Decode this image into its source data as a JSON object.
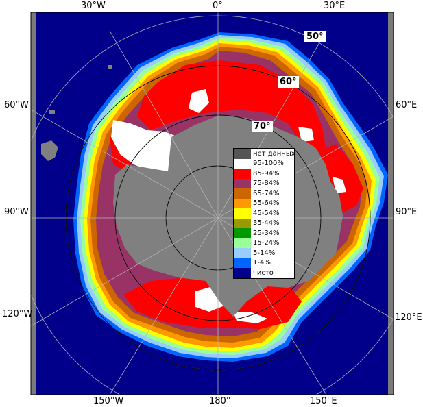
{
  "map": {
    "longitude_labels": {
      "top": [
        "30°W",
        "0°",
        "30°E"
      ],
      "left": [
        "60°W",
        "90°W",
        "120°W"
      ],
      "right": [
        "60°E",
        "90°E",
        "120°E"
      ],
      "bottom": [
        "150°W",
        "180°",
        "150°E"
      ]
    },
    "latitude_labels": [
      "50°",
      "60°",
      "70°"
    ],
    "colors": {
      "open_water": "#00008b",
      "land": "#808080",
      "frame_gray": "#7a7a7a",
      "grid": "#b4b4b4"
    }
  },
  "legend": {
    "items": [
      {
        "label": "нет данных",
        "color": "#555555"
      },
      {
        "label": "95-100%",
        "color": "#ffffff"
      },
      {
        "label": "85-94%",
        "color": "#ff0000"
      },
      {
        "label": "75-84%",
        "color": "#993366"
      },
      {
        "label": "65-74%",
        "color": "#cc6600"
      },
      {
        "label": "55-64%",
        "color": "#ff9900"
      },
      {
        "label": "45-54%",
        "color": "#ffff00"
      },
      {
        "label": "35-44%",
        "color": "#999900"
      },
      {
        "label": "25-34%",
        "color": "#009900"
      },
      {
        "label": "15-24%",
        "color": "#99ff99"
      },
      {
        "label": "5-14%",
        "color": "#99ccff"
      },
      {
        "label": "1-4%",
        "color": "#0066ff"
      },
      {
        "label": "чисто",
        "color": "#00008b"
      }
    ]
  }
}
